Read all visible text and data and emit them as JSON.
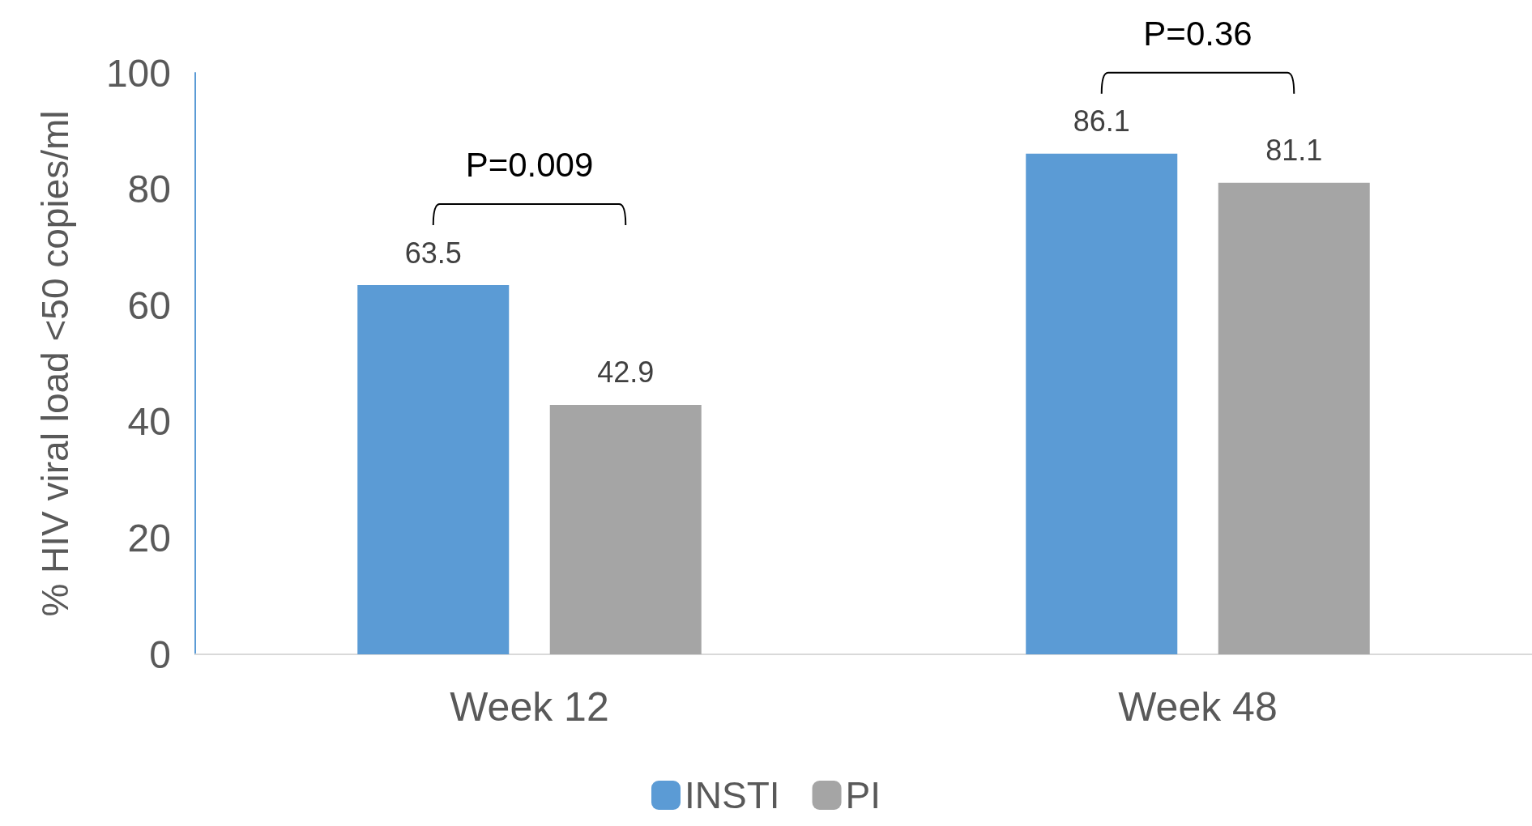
{
  "chart_data": {
    "type": "bar",
    "ylabel": "% HIV viral load <50 copies/ml",
    "categories": [
      "Week 12",
      "Week 48"
    ],
    "series": [
      {
        "name": "INSTI",
        "color": "#5b9bd5",
        "values": [
          63.5,
          86.1
        ]
      },
      {
        "name": "PI",
        "color": "#a5a5a5",
        "values": [
          42.9,
          81.1
        ]
      }
    ],
    "ylim": [
      0,
      100
    ],
    "yticks": [
      0,
      20,
      40,
      60,
      80,
      100
    ],
    "grid": false,
    "legend": "bottom",
    "data_labels": true,
    "annotations": [
      "P=0.009",
      "P=0.36"
    ]
  }
}
